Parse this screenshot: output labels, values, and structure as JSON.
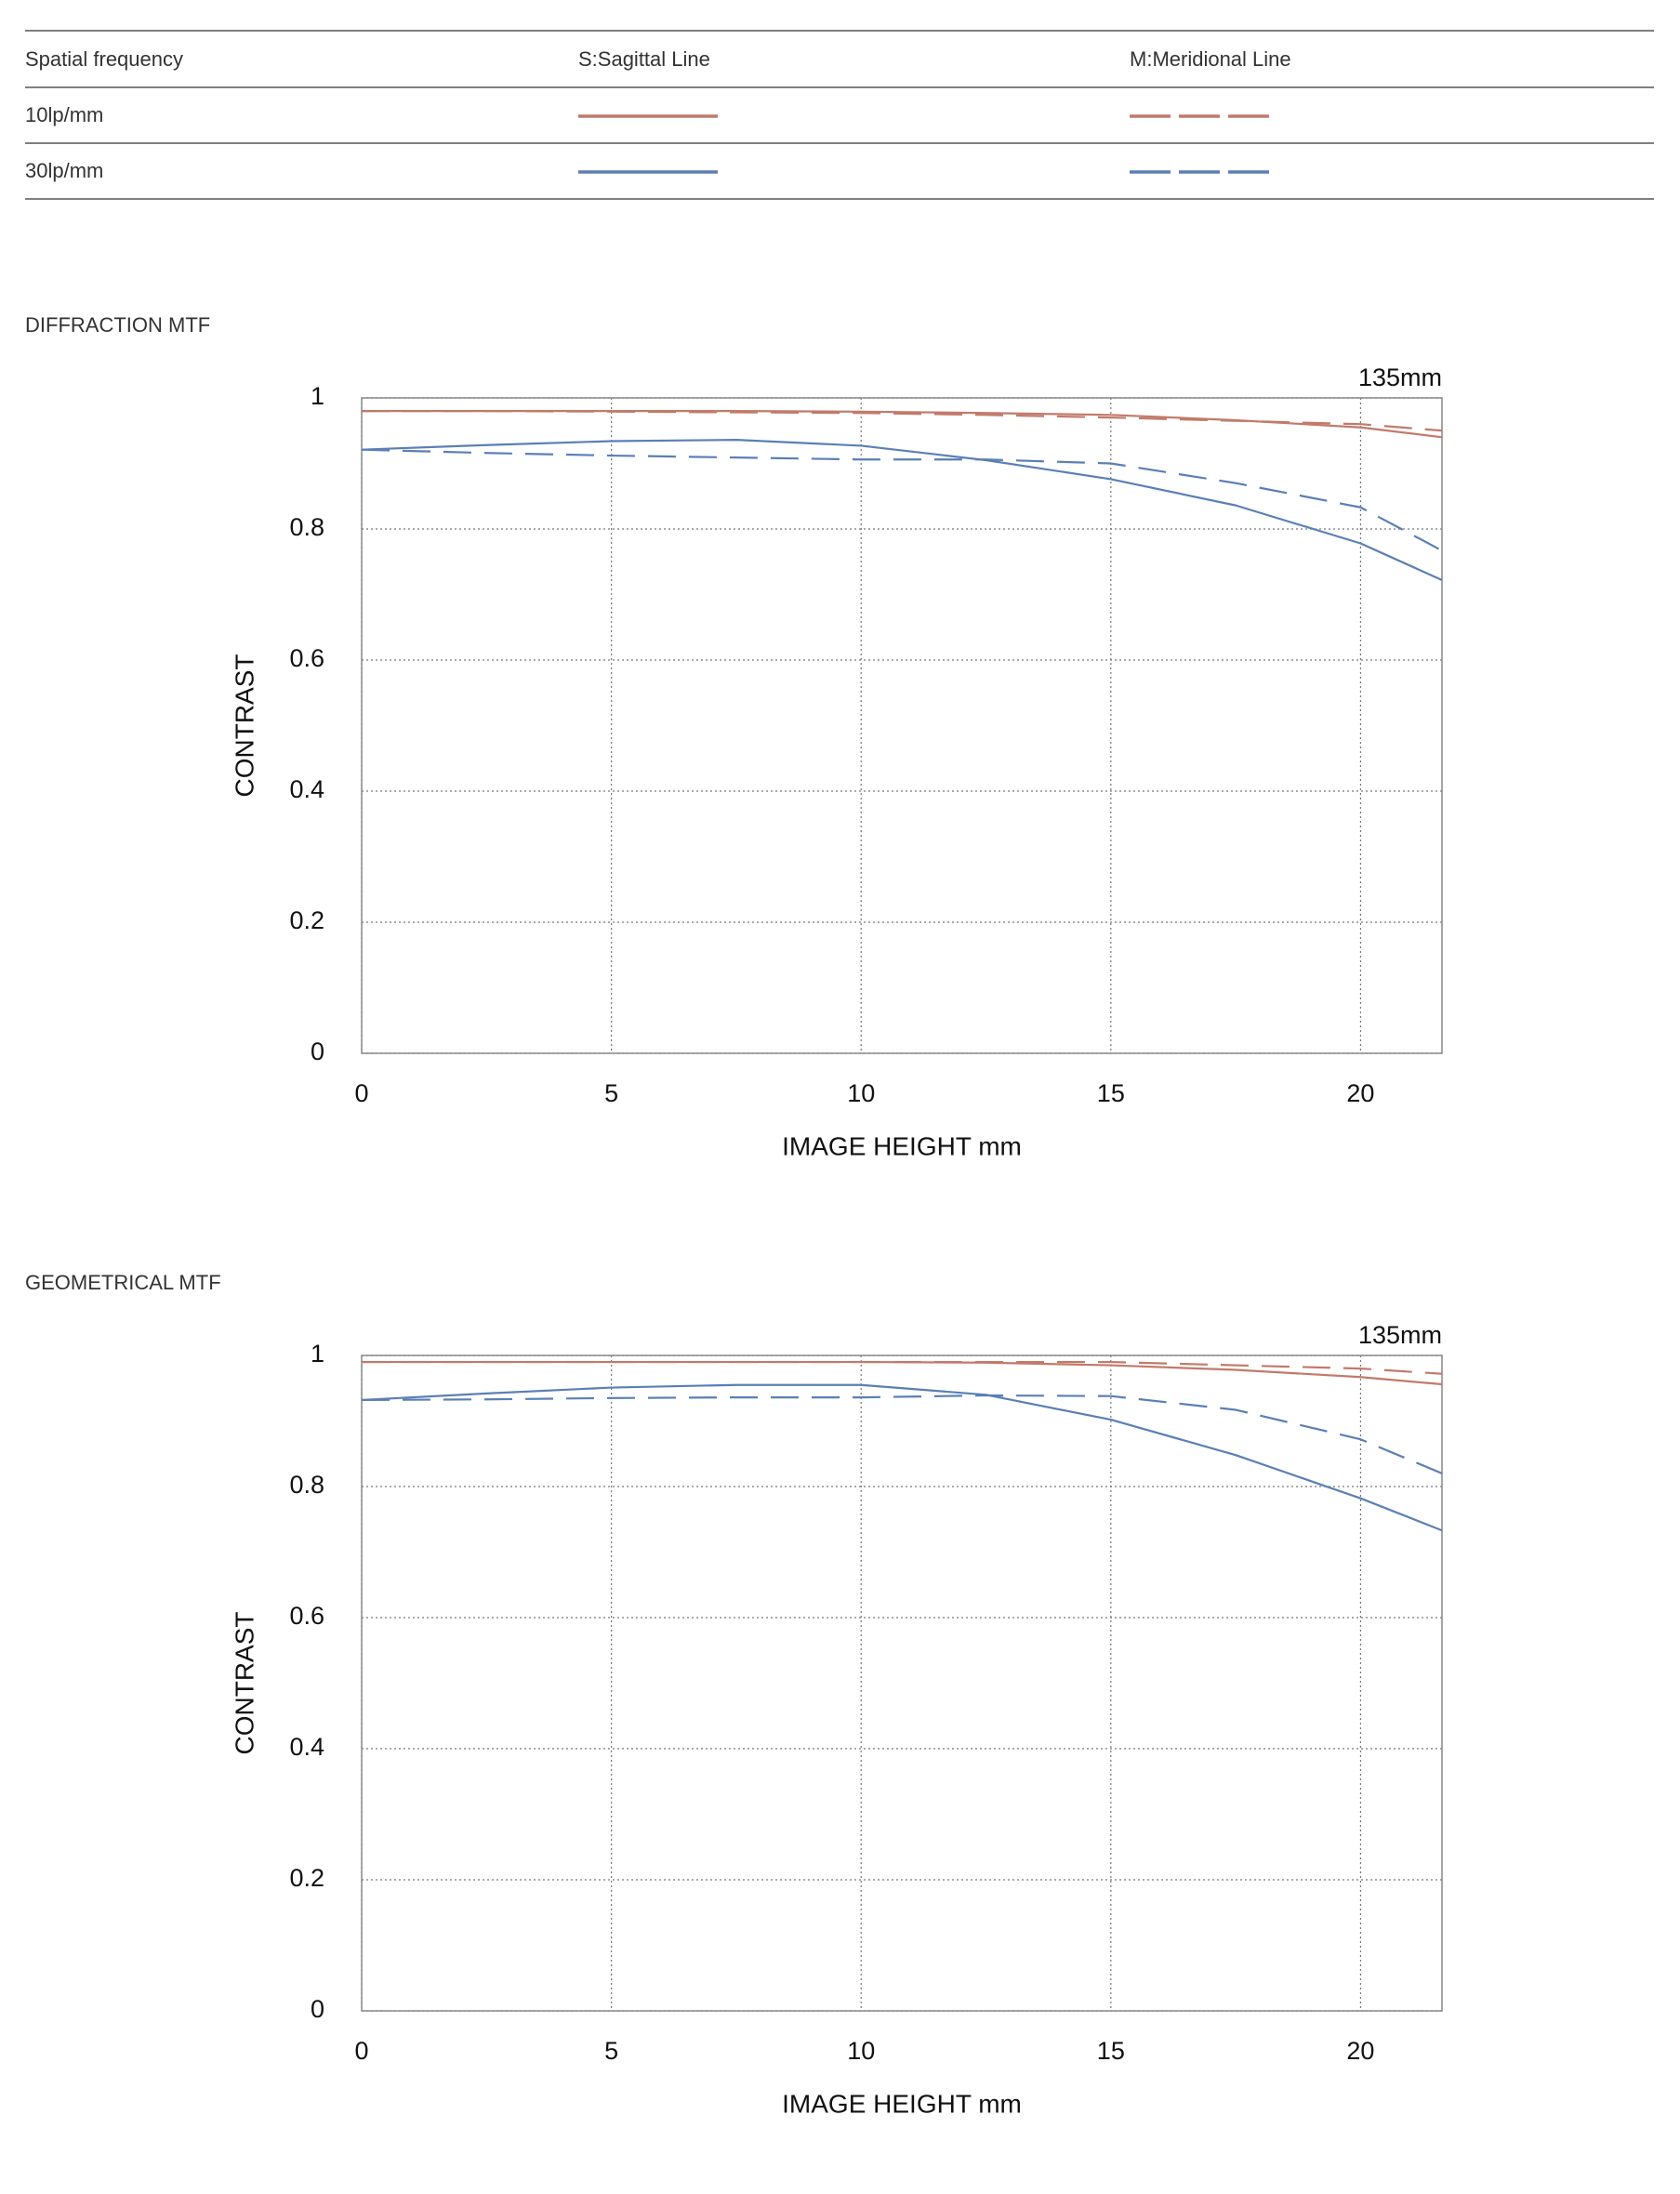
{
  "legend_table": {
    "headers": [
      "Spatial frequency",
      "S:Sagittal Line",
      "M:Meridional Line"
    ],
    "rows": [
      "10lp/mm",
      "30lp/mm"
    ]
  },
  "chart_data": [
    {
      "type": "line",
      "title": "DIFFRACTION MTF",
      "annotation": "135mm",
      "xlabel": "IMAGE HEIGHT  mm",
      "ylabel": "CONTRAST",
      "x": [
        0,
        2.5,
        5,
        7.5,
        10,
        12.5,
        15,
        17.5,
        20,
        21.63
      ],
      "xlim": [
        0,
        21.63
      ],
      "ylim": [
        0,
        1
      ],
      "xticks": [
        0,
        5,
        10,
        15,
        20
      ],
      "yticks": [
        0,
        0.2,
        0.4,
        0.6,
        0.8,
        1
      ],
      "grid": true,
      "series": [
        {
          "color": "#c27a6b",
          "dashed": false,
          "values": [
            0.98,
            0.98,
            0.98,
            0.98,
            0.979,
            0.977,
            0.974,
            0.966,
            0.955,
            0.94
          ]
        },
        {
          "color": "#c27a6b",
          "dashed": true,
          "values": [
            0.98,
            0.98,
            0.979,
            0.978,
            0.977,
            0.974,
            0.97,
            0.965,
            0.96,
            0.95
          ]
        },
        {
          "color": "#5b7fb5",
          "dashed": false,
          "values": [
            0.921,
            0.928,
            0.934,
            0.936,
            0.927,
            0.905,
            0.876,
            0.836,
            0.778,
            0.722
          ]
        },
        {
          "color": "#5b7fb5",
          "dashed": true,
          "values": [
            0.921,
            0.916,
            0.912,
            0.909,
            0.906,
            0.906,
            0.9,
            0.87,
            0.833,
            0.767
          ]
        }
      ]
    },
    {
      "type": "line",
      "title": "GEOMETRICAL MTF",
      "annotation": "135mm",
      "xlabel": "IMAGE HEIGHT  mm",
      "ylabel": "CONTRAST",
      "x": [
        0,
        2.5,
        5,
        7.5,
        10,
        12.5,
        15,
        17.5,
        20,
        21.63
      ],
      "xlim": [
        0,
        21.63
      ],
      "ylim": [
        0,
        1
      ],
      "xticks": [
        0,
        5,
        10,
        15,
        20
      ],
      "yticks": [
        0,
        0.2,
        0.4,
        0.6,
        0.8,
        1
      ],
      "grid": true,
      "series": [
        {
          "color": "#c27a6b",
          "dashed": false,
          "values": [
            0.99,
            0.99,
            0.99,
            0.99,
            0.99,
            0.989,
            0.985,
            0.978,
            0.967,
            0.956
          ]
        },
        {
          "color": "#c27a6b",
          "dashed": true,
          "values": [
            0.99,
            0.99,
            0.99,
            0.99,
            0.99,
            0.99,
            0.99,
            0.985,
            0.98,
            0.972
          ]
        },
        {
          "color": "#5b7fb5",
          "dashed": false,
          "values": [
            0.932,
            0.942,
            0.951,
            0.955,
            0.955,
            0.94,
            0.902,
            0.848,
            0.782,
            0.733
          ]
        },
        {
          "color": "#5b7fb5",
          "dashed": true,
          "values": [
            0.932,
            0.933,
            0.935,
            0.936,
            0.936,
            0.939,
            0.938,
            0.917,
            0.872,
            0.82
          ]
        }
      ]
    }
  ]
}
